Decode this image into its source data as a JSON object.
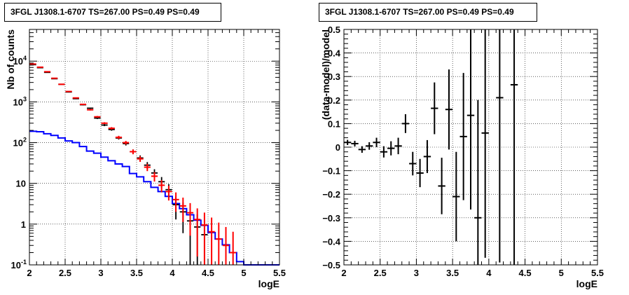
{
  "chart_data": [
    {
      "type": "histogram",
      "title": "3FGL J1308.1-6707 TS=267.00 PS=0.49 PS=0.49",
      "xlabel": "logE",
      "ylabel": "Nb of counts",
      "xlim": [
        2,
        5.5
      ],
      "ylim": [
        0.1,
        60000
      ],
      "yscale": "log",
      "grid": true,
      "x_ticks": [
        "2",
        "2.5",
        "3",
        "3.5",
        "4",
        "4.5",
        "5",
        "5.5"
      ],
      "y_ticks": [
        "10^{-1}",
        "1",
        "10",
        "10^{2}",
        "10^{3}",
        "10^{4}"
      ],
      "bin_centers": [
        2.05,
        2.15,
        2.25,
        2.35,
        2.45,
        2.55,
        2.65,
        2.75,
        2.85,
        2.95,
        3.05,
        3.15,
        3.25,
        3.35,
        3.45,
        3.55,
        3.65,
        3.75,
        3.85,
        3.95,
        4.05,
        4.15,
        4.25,
        4.35,
        4.45,
        4.55,
        4.65,
        4.75,
        4.85
      ],
      "series": [
        {
          "name": "",
          "style": "step",
          "color": "#0000ff",
          "bin_edges": [
            2.0,
            2.1,
            2.2,
            2.3,
            2.4,
            2.5,
            2.6,
            2.7,
            2.8,
            2.9,
            3.0,
            3.1,
            3.2,
            3.3,
            3.4,
            3.5,
            3.6,
            3.7,
            3.8,
            3.9,
            4.0,
            4.1,
            4.2,
            4.3,
            4.4,
            4.5,
            4.6,
            4.7,
            4.8,
            4.9,
            5.0,
            5.1,
            5.2,
            5.3,
            5.4,
            5.5
          ],
          "values": [
            190,
            185,
            165,
            150,
            130,
            110,
            100,
            80,
            62,
            55,
            44,
            36,
            30,
            26,
            17.5,
            14.5,
            11,
            8,
            6.3,
            4.8,
            3.2,
            2.4,
            1.7,
            1.25,
            0.93,
            0.62,
            0.43,
            0.31,
            0.2,
            0.12,
            0.1,
            0.1,
            0.1,
            0.1,
            0.1
          ]
        },
        {
          "name": "",
          "style": "errorbar",
          "color": "#ff0000",
          "values": [
            8500,
            7100,
            5500,
            3800,
            2700,
            1800,
            1250,
            870,
            640,
            430,
            300,
            225,
            135,
            100,
            60,
            40,
            25,
            15,
            9,
            6.3,
            4,
            2.8,
            1.9,
            1.3,
            0.95,
            0.65,
            0.43,
            0.3,
            0.2
          ],
          "yerr": [
            92,
            84,
            74,
            62,
            52,
            42,
            35,
            29,
            25,
            21,
            17,
            15,
            12,
            10,
            8,
            6.3,
            5,
            3.9,
            3,
            2.5,
            2,
            1.67,
            1.38,
            1.14,
            0.97,
            0.8,
            0.66,
            0.55,
            0.45
          ]
        },
        {
          "name": "",
          "style": "errorbar",
          "color": "#000000",
          "values": [
            8200,
            6900,
            5300,
            3700,
            2700,
            1750,
            1200,
            850,
            700,
            400,
            270,
            210,
            130,
            95,
            60,
            42,
            28,
            18,
            11,
            7,
            3,
            2,
            1.2,
            0.85,
            0.55
          ],
          "yerr": [
            90,
            83,
            73,
            61,
            52,
            42,
            35,
            29,
            26,
            20,
            16,
            14,
            11,
            10,
            8,
            6.5,
            5.3,
            4.2,
            3.3,
            2.6,
            1.7,
            1.4,
            1.1,
            0.9,
            0.7
          ]
        }
      ]
    },
    {
      "type": "scatter",
      "title": "3FGL J1308.1-6707 TS=267.00 PS=0.49 PS=0.49",
      "xlabel": "logE",
      "ylabel": "(data-model)/model",
      "xlim": [
        2,
        5.5
      ],
      "ylim": [
        -0.5,
        0.5
      ],
      "grid": true,
      "x_ticks": [
        "2",
        "2.5",
        "3",
        "3.5",
        "4",
        "4.5",
        "5",
        "5.5"
      ],
      "y_ticks": [
        "-0.5",
        "-0.4",
        "-0.3",
        "-0.2",
        "-0.1",
        "0",
        "0.1",
        "0.2",
        "0.3",
        "0.4",
        "0.5"
      ],
      "x": [
        2.05,
        2.15,
        2.25,
        2.35,
        2.45,
        2.55,
        2.65,
        2.75,
        2.85,
        2.95,
        3.05,
        3.15,
        3.25,
        3.35,
        3.45,
        3.55,
        3.65,
        3.75,
        3.85,
        3.95,
        4.15,
        4.35
      ],
      "y": [
        0.02,
        0.015,
        -0.01,
        0.005,
        0.02,
        -0.02,
        -0.005,
        0.005,
        0.1,
        -0.07,
        -0.11,
        -0.04,
        0.165,
        -0.165,
        0.16,
        -0.21,
        0.045,
        0.135,
        -0.3,
        0.06,
        0.21,
        0.265
      ],
      "yerr": [
        0.011,
        0.012,
        0.014,
        0.016,
        0.02,
        0.024,
        0.03,
        0.035,
        0.04,
        0.05,
        0.06,
        0.07,
        0.11,
        0.12,
        0.17,
        0.19,
        0.27,
        0.4,
        0.5,
        0.53,
        0.7,
        0.9
      ]
    }
  ]
}
